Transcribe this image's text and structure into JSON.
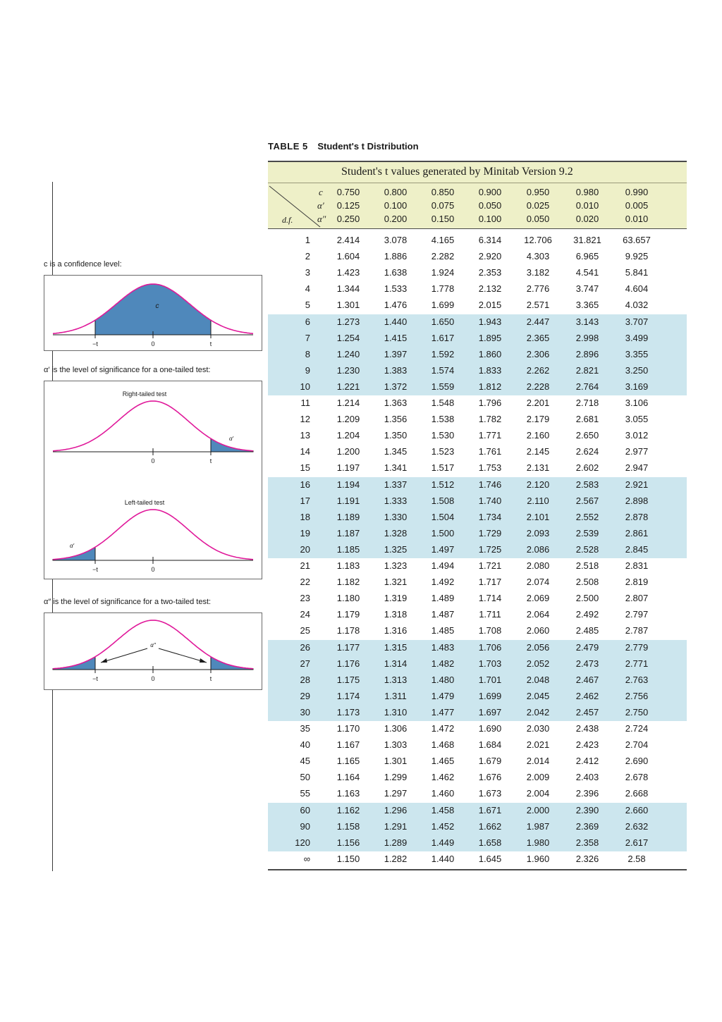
{
  "title": {
    "number": "TABLE 5",
    "text": "Student's t Distribution"
  },
  "banner": "Student's t values generated by Minitab Version 9.2",
  "header": {
    "symbols": [
      "c",
      "α′",
      "α″"
    ],
    "df_label": "d.f.",
    "c_row": [
      "0.750",
      "0.800",
      "0.850",
      "0.900",
      "0.950",
      "0.980",
      "0.990"
    ],
    "a1_row": [
      "0.125",
      "0.100",
      "0.075",
      "0.050",
      "0.025",
      "0.010",
      "0.005"
    ],
    "a2_row": [
      "0.250",
      "0.200",
      "0.150",
      "0.100",
      "0.050",
      "0.020",
      "0.010"
    ]
  },
  "rows": [
    {
      "df": "1",
      "v": [
        "2.414",
        "3.078",
        "4.165",
        "6.314",
        "12.706",
        "31.821",
        "63.657"
      ]
    },
    {
      "df": "2",
      "v": [
        "1.604",
        "1.886",
        "2.282",
        "2.920",
        "4.303",
        "6.965",
        "9.925"
      ]
    },
    {
      "df": "3",
      "v": [
        "1.423",
        "1.638",
        "1.924",
        "2.353",
        "3.182",
        "4.541",
        "5.841"
      ]
    },
    {
      "df": "4",
      "v": [
        "1.344",
        "1.533",
        "1.778",
        "2.132",
        "2.776",
        "3.747",
        "4.604"
      ]
    },
    {
      "df": "5",
      "v": [
        "1.301",
        "1.476",
        "1.699",
        "2.015",
        "2.571",
        "3.365",
        "4.032"
      ]
    },
    {
      "df": "6",
      "v": [
        "1.273",
        "1.440",
        "1.650",
        "1.943",
        "2.447",
        "3.143",
        "3.707"
      ]
    },
    {
      "df": "7",
      "v": [
        "1.254",
        "1.415",
        "1.617",
        "1.895",
        "2.365",
        "2.998",
        "3.499"
      ]
    },
    {
      "df": "8",
      "v": [
        "1.240",
        "1.397",
        "1.592",
        "1.860",
        "2.306",
        "2.896",
        "3.355"
      ]
    },
    {
      "df": "9",
      "v": [
        "1.230",
        "1.383",
        "1.574",
        "1.833",
        "2.262",
        "2.821",
        "3.250"
      ]
    },
    {
      "df": "10",
      "v": [
        "1.221",
        "1.372",
        "1.559",
        "1.812",
        "2.228",
        "2.764",
        "3.169"
      ]
    },
    {
      "df": "11",
      "v": [
        "1.214",
        "1.363",
        "1.548",
        "1.796",
        "2.201",
        "2.718",
        "3.106"
      ]
    },
    {
      "df": "12",
      "v": [
        "1.209",
        "1.356",
        "1.538",
        "1.782",
        "2.179",
        "2.681",
        "3.055"
      ]
    },
    {
      "df": "13",
      "v": [
        "1.204",
        "1.350",
        "1.530",
        "1.771",
        "2.160",
        "2.650",
        "3.012"
      ]
    },
    {
      "df": "14",
      "v": [
        "1.200",
        "1.345",
        "1.523",
        "1.761",
        "2.145",
        "2.624",
        "2.977"
      ]
    },
    {
      "df": "15",
      "v": [
        "1.197",
        "1.341",
        "1.517",
        "1.753",
        "2.131",
        "2.602",
        "2.947"
      ]
    },
    {
      "df": "16",
      "v": [
        "1.194",
        "1.337",
        "1.512",
        "1.746",
        "2.120",
        "2.583",
        "2.921"
      ]
    },
    {
      "df": "17",
      "v": [
        "1.191",
        "1.333",
        "1.508",
        "1.740",
        "2.110",
        "2.567",
        "2.898"
      ]
    },
    {
      "df": "18",
      "v": [
        "1.189",
        "1.330",
        "1.504",
        "1.734",
        "2.101",
        "2.552",
        "2.878"
      ]
    },
    {
      "df": "19",
      "v": [
        "1.187",
        "1.328",
        "1.500",
        "1.729",
        "2.093",
        "2.539",
        "2.861"
      ]
    },
    {
      "df": "20",
      "v": [
        "1.185",
        "1.325",
        "1.497",
        "1.725",
        "2.086",
        "2.528",
        "2.845"
      ]
    },
    {
      "df": "21",
      "v": [
        "1.183",
        "1.323",
        "1.494",
        "1.721",
        "2.080",
        "2.518",
        "2.831"
      ]
    },
    {
      "df": "22",
      "v": [
        "1.182",
        "1.321",
        "1.492",
        "1.717",
        "2.074",
        "2.508",
        "2.819"
      ]
    },
    {
      "df": "23",
      "v": [
        "1.180",
        "1.319",
        "1.489",
        "1.714",
        "2.069",
        "2.500",
        "2.807"
      ]
    },
    {
      "df": "24",
      "v": [
        "1.179",
        "1.318",
        "1.487",
        "1.711",
        "2.064",
        "2.492",
        "2.797"
      ]
    },
    {
      "df": "25",
      "v": [
        "1.178",
        "1.316",
        "1.485",
        "1.708",
        "2.060",
        "2.485",
        "2.787"
      ]
    },
    {
      "df": "26",
      "v": [
        "1.177",
        "1.315",
        "1.483",
        "1.706",
        "2.056",
        "2.479",
        "2.779"
      ]
    },
    {
      "df": "27",
      "v": [
        "1.176",
        "1.314",
        "1.482",
        "1.703",
        "2.052",
        "2.473",
        "2.771"
      ]
    },
    {
      "df": "28",
      "v": [
        "1.175",
        "1.313",
        "1.480",
        "1.701",
        "2.048",
        "2.467",
        "2.763"
      ]
    },
    {
      "df": "29",
      "v": [
        "1.174",
        "1.311",
        "1.479",
        "1.699",
        "2.045",
        "2.462",
        "2.756"
      ]
    },
    {
      "df": "30",
      "v": [
        "1.173",
        "1.310",
        "1.477",
        "1.697",
        "2.042",
        "2.457",
        "2.750"
      ]
    },
    {
      "df": "35",
      "v": [
        "1.170",
        "1.306",
        "1.472",
        "1.690",
        "2.030",
        "2.438",
        "2.724"
      ]
    },
    {
      "df": "40",
      "v": [
        "1.167",
        "1.303",
        "1.468",
        "1.684",
        "2.021",
        "2.423",
        "2.704"
      ]
    },
    {
      "df": "45",
      "v": [
        "1.165",
        "1.301",
        "1.465",
        "1.679",
        "2.014",
        "2.412",
        "2.690"
      ]
    },
    {
      "df": "50",
      "v": [
        "1.164",
        "1.299",
        "1.462",
        "1.676",
        "2.009",
        "2.403",
        "2.678"
      ]
    },
    {
      "df": "55",
      "v": [
        "1.163",
        "1.297",
        "1.460",
        "1.673",
        "2.004",
        "2.396",
        "2.668"
      ]
    },
    {
      "df": "60",
      "v": [
        "1.162",
        "1.296",
        "1.458",
        "1.671",
        "2.000",
        "2.390",
        "2.660"
      ]
    },
    {
      "df": "90",
      "v": [
        "1.158",
        "1.291",
        "1.452",
        "1.662",
        "1.987",
        "2.369",
        "2.632"
      ]
    },
    {
      "df": "120",
      "v": [
        "1.156",
        "1.289",
        "1.449",
        "1.658",
        "1.980",
        "2.358",
        "2.617"
      ]
    },
    {
      "df": "∞",
      "v": [
        "1.150",
        "1.282",
        "1.440",
        "1.645",
        "1.960",
        "2.326",
        "2.58"
      ]
    }
  ],
  "shaded_groups": [
    [
      6,
      10
    ],
    [
      16,
      20
    ],
    [
      26,
      30
    ],
    [
      60,
      120
    ]
  ],
  "figures": {
    "confidence": {
      "caption": "c is a confidence level:",
      "center": "c",
      "ticks": [
        "−t",
        "0",
        "t"
      ]
    },
    "one_tailed": {
      "caption": "α′ is the level of significance for a one-tailed test:"
    },
    "right_tailed": {
      "label": "Right-tailed test",
      "alpha": "α′",
      "ticks": [
        "0",
        "t"
      ]
    },
    "left_tailed": {
      "label": "Left-tailed test",
      "alpha": "α′",
      "ticks": [
        "−t",
        "0"
      ]
    },
    "two_tailed": {
      "caption": "α″ is the level of significance for a two-tailed test:",
      "alpha": "α″",
      "ticks": [
        "−t",
        "0",
        "t"
      ]
    }
  },
  "colors": {
    "shade": "#cce6ee",
    "header_bg": "#eef0c8",
    "curve": "#e0199a",
    "fill": "#4f88bb"
  }
}
